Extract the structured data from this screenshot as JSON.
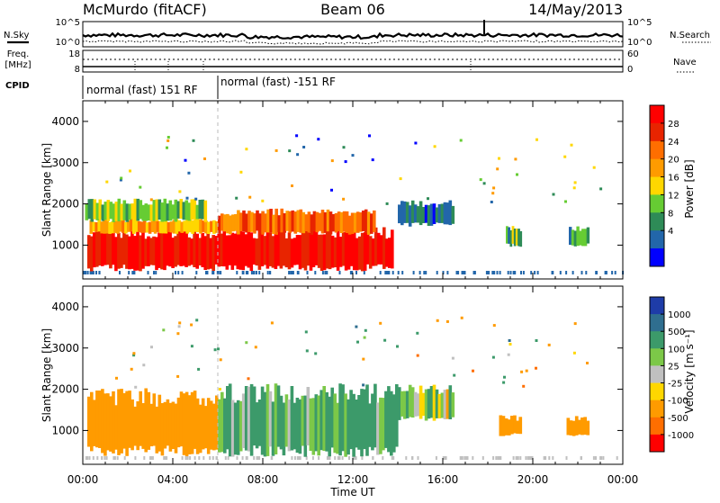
{
  "header": {
    "station": "McMurdo (fitACF)",
    "beam": "Beam 06",
    "date": "14/May/2013"
  },
  "noise_panel": {
    "left_label": "N.Sky",
    "left_ticks": [
      "10^5",
      "10^0"
    ],
    "right_label": "N.Search",
    "right_ticks": [
      "10^5",
      "10^0"
    ]
  },
  "freq_panel": {
    "left_label_line1": "Freq.",
    "left_label_line2": "[MHz]",
    "left_ticks": [
      "18",
      "8"
    ],
    "right_label": "Nave",
    "right_ticks": [
      "60",
      "0"
    ]
  },
  "cpid": {
    "label": "CPID",
    "segments": [
      {
        "text": "normal (fast) 151 RF",
        "start_hour": 0.0,
        "end_hour": 6.0
      },
      {
        "text": "normal (fast) -151 RF",
        "start_hour": 6.0,
        "end_hour": 24.0
      }
    ]
  },
  "x_axis": {
    "ticks": [
      "00:00",
      "04:00",
      "08:00",
      "12:00",
      "16:00",
      "20:00",
      "00:00"
    ],
    "tick_hours": [
      0,
      4,
      8,
      12,
      16,
      20,
      24
    ],
    "label": "Time UT"
  },
  "y_axis": {
    "label": "Slant Range [km]",
    "ticks": [
      "4000",
      "3000",
      "2000",
      "1000"
    ],
    "tick_values": [
      4000,
      3000,
      2000,
      1000
    ],
    "range": [
      180,
      4500
    ]
  },
  "power_colorbar": {
    "label": "Power [dB]",
    "ticks": [
      "28",
      "24",
      "20",
      "16",
      "12",
      "8",
      "4"
    ],
    "colors": [
      "#ff0000",
      "#e82400",
      "#ff6e00",
      "#ff9b00",
      "#ffd700",
      "#66cc33",
      "#2e8b57",
      "#2266aa",
      "#0000ff"
    ]
  },
  "velocity_colorbar": {
    "label": "Velocity [m s⁻¹]",
    "ticks": [
      "1000",
      "500",
      "100",
      "25",
      "-25",
      "-100",
      "-500",
      "-1000"
    ],
    "colors": [
      "#1e3ca8",
      "#2f6e8f",
      "#3c9a6a",
      "#7cc848",
      "#c0c0c0",
      "#ffd700",
      "#ff9b00",
      "#ff6e00",
      "#ff0000"
    ]
  },
  "chart_data": {
    "type": "heatmap",
    "x_label": "Time UT",
    "y_label": "Slant Range [km]",
    "x_range_hours": [
      0,
      24
    ],
    "y_range_km": [
      180,
      4500
    ],
    "panels": [
      {
        "name": "Power [dB]",
        "scale": [
          0,
          30
        ],
        "regions": [
          {
            "t0": 0.2,
            "t1": 13.8,
            "r0": 450,
            "r1": 1300,
            "value": 28
          },
          {
            "t0": 0.3,
            "t1": 6.0,
            "r0": 1300,
            "r1": 1600,
            "value": 18
          },
          {
            "t0": 0.1,
            "t1": 5.5,
            "r0": 1600,
            "r1": 2050,
            "value": 12
          },
          {
            "t0": 6.0,
            "t1": 13.0,
            "r0": 1300,
            "r1": 1800,
            "value": 22
          },
          {
            "t0": 14.0,
            "t1": 16.5,
            "r0": 1500,
            "r1": 2000,
            "value": 6
          },
          {
            "t0": 18.8,
            "t1": 19.5,
            "r0": 1000,
            "r1": 1400,
            "value": 10
          },
          {
            "t0": 21.6,
            "t1": 22.5,
            "r0": 1000,
            "r1": 1400,
            "value": 10
          }
        ]
      },
      {
        "name": "Velocity [m s⁻¹]",
        "scale": [
          -1000,
          1000
        ],
        "regions": [
          {
            "t0": 0.2,
            "t1": 6.0,
            "r0": 500,
            "r1": 1800,
            "value": -300
          },
          {
            "t0": 6.0,
            "t1": 14.0,
            "r0": 500,
            "r1": 1900,
            "value": 150
          },
          {
            "t0": 14.0,
            "t1": 16.5,
            "r0": 1300,
            "r1": 2000,
            "value": 40
          },
          {
            "t0": 18.5,
            "t1": 19.5,
            "r0": 900,
            "r1": 1300,
            "value": -300
          },
          {
            "t0": 21.5,
            "t1": 22.5,
            "r0": 900,
            "r1": 1300,
            "value": -300
          }
        ]
      }
    ]
  }
}
